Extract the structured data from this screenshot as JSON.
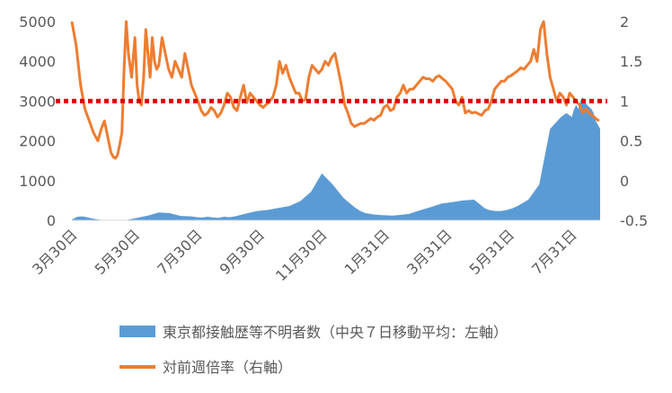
{
  "chart_data": {
    "type": "line",
    "title": "",
    "x_tick_labels": [
      "3月30日",
      "5月30日",
      "7月30日",
      "9月30日",
      "11月30日",
      "1月31日",
      "3月31日",
      "5月31日",
      "7月31日"
    ],
    "y_left": {
      "ticks": [
        "0",
        "1000",
        "2000",
        "3000",
        "4000",
        "5000"
      ],
      "ylim": [
        0,
        5000
      ]
    },
    "y_right": {
      "ticks": [
        "-0.5",
        "0",
        "0.5",
        "1",
        "1.5",
        "2"
      ],
      "ylim": [
        -0.5,
        2
      ]
    },
    "reference_line": {
      "axis": "right",
      "value": 1,
      "color": "#e00000",
      "style": "dotted"
    },
    "grid": false,
    "legend_position": "bottom",
    "series": [
      {
        "name": "東京都接触歴等不明者数（中央７日移動平均：左軸）",
        "axis": "left",
        "kind": "area",
        "color": "#5b9bd5",
        "x_day": [
          0,
          5,
          10,
          15,
          20,
          25,
          30,
          40,
          50,
          60,
          70,
          80,
          90,
          100,
          110,
          115,
          120,
          125,
          130,
          135,
          140,
          145,
          150,
          160,
          170,
          180,
          190,
          200,
          210,
          220,
          230,
          240,
          250,
          260,
          265,
          270,
          275,
          277,
          279,
          281,
          283,
          285,
          287,
          290,
          295,
          300,
          310,
          320,
          330,
          340,
          350,
          360,
          370,
          380,
          385,
          390,
          395,
          400,
          405,
          410,
          420,
          430,
          440,
          450,
          455,
          460,
          462,
          464,
          466,
          468,
          470,
          472,
          474,
          476,
          478,
          480,
          482,
          484,
          486
        ],
        "values": [
          20,
          90,
          100,
          70,
          40,
          15,
          10,
          5,
          5,
          60,
          120,
          200,
          180,
          110,
          100,
          80,
          70,
          90,
          70,
          60,
          90,
          80,
          100,
          170,
          230,
          260,
          310,
          360,
          480,
          720,
          1180,
          900,
          560,
          330,
          240,
          180,
          160,
          150,
          145,
          140,
          135,
          130,
          128,
          125,
          120,
          130,
          160,
          250,
          330,
          420,
          460,
          500,
          520,
          300,
          250,
          235,
          235,
          260,
          300,
          360,
          520,
          900,
          2300,
          2600,
          2700,
          2600,
          2800,
          2900,
          2800,
          3000,
          3100,
          3000,
          2900,
          2850,
          2800,
          2700,
          2500,
          2400,
          2300
        ]
      },
      {
        "name": "対前週倍率（右軸）",
        "axis": "right",
        "kind": "line",
        "color": "#ed7d31",
        "x_day": [
          0,
          4,
          8,
          12,
          16,
          20,
          24,
          27,
          30,
          33,
          36,
          38,
          40,
          42,
          44,
          46,
          48,
          50,
          52,
          55,
          58,
          60,
          62,
          64,
          66,
          68,
          70,
          72,
          74,
          76,
          78,
          80,
          83,
          86,
          89,
          92,
          95,
          98,
          101,
          104,
          107,
          110,
          113,
          116,
          119,
          122,
          125,
          128,
          131,
          134,
          137,
          140,
          143,
          146,
          149,
          152,
          155,
          158,
          161,
          164,
          167,
          170,
          173,
          176,
          179,
          182,
          185,
          188,
          191,
          194,
          197,
          200,
          203,
          206,
          209,
          212,
          215,
          218,
          221,
          224,
          227,
          230,
          233,
          236,
          239,
          242,
          245,
          248,
          251,
          254,
          257,
          260,
          263,
          266,
          269,
          272,
          275,
          278,
          281,
          284,
          287,
          290,
          293,
          296,
          299,
          302,
          305,
          308,
          311,
          314,
          317,
          320,
          323,
          326,
          329,
          332,
          335,
          338,
          341,
          344,
          347,
          350,
          353,
          356,
          359,
          362,
          365,
          368,
          371,
          374,
          377,
          380,
          383,
          386,
          389,
          392,
          395,
          398,
          401,
          404,
          407,
          410,
          413,
          416,
          419,
          422,
          425,
          428,
          431,
          434,
          437,
          440,
          443,
          446,
          449,
          452,
          455,
          458,
          461,
          464,
          467,
          470,
          473,
          476,
          479,
          482,
          485
        ],
        "values": [
          2.0,
          1.7,
          1.2,
          0.9,
          0.75,
          0.6,
          0.5,
          0.65,
          0.75,
          0.55,
          0.35,
          0.3,
          0.28,
          0.32,
          0.45,
          0.6,
          1.4,
          2.0,
          1.6,
          1.3,
          1.8,
          1.2,
          1.0,
          0.95,
          1.3,
          1.9,
          1.6,
          1.3,
          1.8,
          1.5,
          1.4,
          1.45,
          1.8,
          1.6,
          1.4,
          1.3,
          1.5,
          1.4,
          1.3,
          1.6,
          1.4,
          1.2,
          1.1,
          1.0,
          0.88,
          0.82,
          0.85,
          0.92,
          0.88,
          0.8,
          0.85,
          0.95,
          1.1,
          1.05,
          0.92,
          0.88,
          1.05,
          1.2,
          0.98,
          1.1,
          1.05,
          1.0,
          0.95,
          0.92,
          0.96,
          1.0,
          1.05,
          1.2,
          1.5,
          1.35,
          1.45,
          1.3,
          1.2,
          1.1,
          1.1,
          1.0,
          1.02,
          1.3,
          1.45,
          1.4,
          1.35,
          1.4,
          1.5,
          1.45,
          1.55,
          1.6,
          1.4,
          1.2,
          0.95,
          0.85,
          0.72,
          0.68,
          0.7,
          0.72,
          0.72,
          0.75,
          0.78,
          0.76,
          0.8,
          0.82,
          0.92,
          0.95,
          0.88,
          0.9,
          1.05,
          1.1,
          1.2,
          1.1,
          1.15,
          1.15,
          1.2,
          1.25,
          1.3,
          1.28,
          1.28,
          1.25,
          1.3,
          1.32,
          1.28,
          1.25,
          1.2,
          1.15,
          1.0,
          0.95,
          1.05,
          0.85,
          0.88,
          0.85,
          0.86,
          0.84,
          0.82,
          0.88,
          0.9,
          1.0,
          1.15,
          1.2,
          1.25,
          1.25,
          1.3,
          1.32,
          1.35,
          1.38,
          1.42,
          1.4,
          1.45,
          1.5,
          1.65,
          1.5,
          1.9,
          2.0,
          1.6,
          1.3,
          1.15,
          1.0,
          1.1,
          1.05,
          0.95,
          1.1,
          1.05,
          1.0,
          0.95,
          0.85,
          0.9,
          0.85,
          0.82,
          0.78,
          0.75
        ]
      }
    ]
  },
  "legend": {
    "area_label": "東京都接触歴等不明者数（中央７日移動平均：左軸）",
    "line_label": "対前週倍率（右軸）"
  },
  "colors": {
    "area": "#5b9bd5",
    "line": "#ed7d31",
    "reference": "#e00000",
    "axis_text": "#595959",
    "axis_line": "#d9d9d9"
  }
}
